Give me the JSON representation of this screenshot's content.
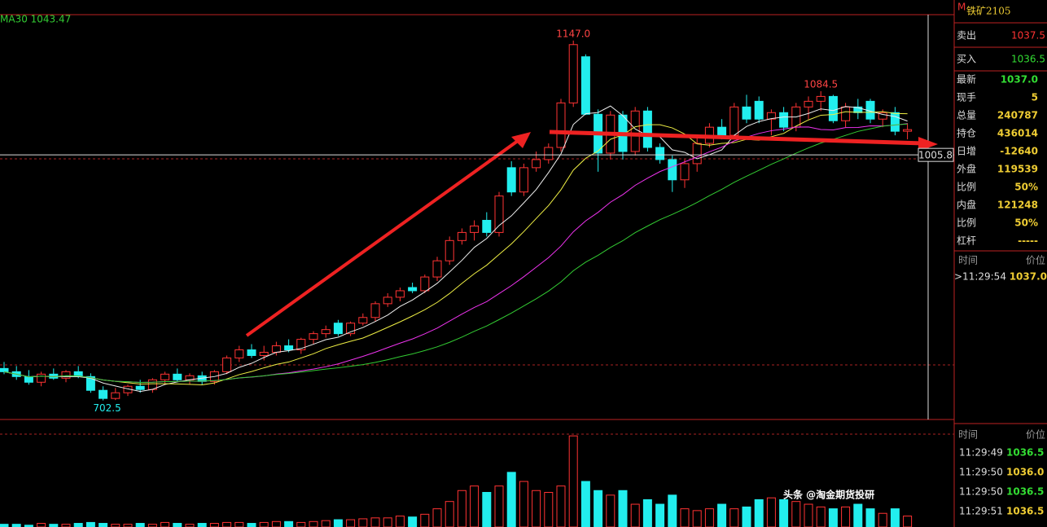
{
  "chart_data": {
    "type": "candlestick",
    "ma_label": "MA30 1043.47",
    "ylim": [
      679,
      1179
    ],
    "ohlc": [
      [
        742,
        750,
        735,
        738
      ],
      [
        738,
        745,
        728,
        732
      ],
      [
        732,
        740,
        722,
        725
      ],
      [
        725,
        738,
        720,
        735
      ],
      [
        735,
        742,
        728,
        730
      ],
      [
        730,
        740,
        725,
        738
      ],
      [
        738,
        745,
        730,
        732
      ],
      [
        732,
        736,
        712,
        715
      ],
      [
        715,
        720,
        702.5,
        705
      ],
      [
        705,
        718,
        703,
        712
      ],
      [
        712,
        722,
        708,
        720
      ],
      [
        720,
        728,
        712,
        716
      ],
      [
        716,
        730,
        712,
        728
      ],
      [
        728,
        738,
        722,
        735
      ],
      [
        735,
        742,
        725,
        728
      ],
      [
        728,
        736,
        722,
        733
      ],
      [
        733,
        738,
        722,
        726
      ],
      [
        726,
        740,
        722,
        738
      ],
      [
        738,
        758,
        735,
        755
      ],
      [
        755,
        770,
        750,
        765
      ],
      [
        765,
        772,
        755,
        758
      ],
      [
        758,
        770,
        752,
        762
      ],
      [
        762,
        775,
        758,
        770
      ],
      [
        770,
        778,
        762,
        765
      ],
      [
        765,
        780,
        760,
        778
      ],
      [
        778,
        788,
        772,
        785
      ],
      [
        785,
        795,
        780,
        790
      ],
      [
        798,
        802,
        782,
        785
      ],
      [
        785,
        800,
        782,
        798
      ],
      [
        798,
        810,
        795,
        805
      ],
      [
        805,
        825,
        800,
        822
      ],
      [
        822,
        835,
        818,
        830
      ],
      [
        830,
        842,
        825,
        838
      ],
      [
        842,
        848,
        835,
        838
      ],
      [
        838,
        858,
        835,
        855
      ],
      [
        855,
        880,
        850,
        875
      ],
      [
        875,
        905,
        870,
        900
      ],
      [
        900,
        915,
        895,
        910
      ],
      [
        910,
        925,
        900,
        918
      ],
      [
        925,
        935,
        905,
        910
      ],
      [
        910,
        960,
        905,
        955
      ],
      [
        990,
        998,
        955,
        960
      ],
      [
        960,
        995,
        955,
        990
      ],
      [
        990,
        1010,
        985,
        1000
      ],
      [
        1000,
        1020,
        995,
        1015
      ],
      [
        1015,
        1075,
        1010,
        1070
      ],
      [
        1070,
        1147,
        1065,
        1142
      ],
      [
        1127,
        1130,
        1055,
        1056
      ],
      [
        1056,
        1062,
        985,
        1008
      ],
      [
        1008,
        1060,
        1000,
        1055
      ],
      [
        1055,
        1060,
        1000,
        1010
      ],
      [
        1010,
        1065,
        1005,
        1060
      ],
      [
        1060,
        1065,
        1010,
        1015
      ],
      [
        1015,
        1020,
        995,
        1000
      ],
      [
        1000,
        1005,
        960,
        975
      ],
      [
        975,
        1000,
        965,
        995
      ],
      [
        995,
        1030,
        985,
        1020
      ],
      [
        1020,
        1045,
        1015,
        1040
      ],
      [
        1040,
        1050,
        1025,
        1030
      ],
      [
        1030,
        1070,
        1025,
        1065
      ],
      [
        1065,
        1080,
        1045,
        1050
      ],
      [
        1072,
        1078,
        1045,
        1050
      ],
      [
        1050,
        1062,
        1030,
        1058
      ],
      [
        1058,
        1065,
        1035,
        1040
      ],
      [
        1040,
        1070,
        1035,
        1065
      ],
      [
        1065,
        1078,
        1050,
        1072
      ],
      [
        1072,
        1084.5,
        1060,
        1078
      ],
      [
        1078,
        1080,
        1045,
        1048
      ],
      [
        1048,
        1070,
        1040,
        1065
      ],
      [
        1065,
        1075,
        1050,
        1058
      ],
      [
        1072,
        1075,
        1045,
        1050
      ],
      [
        1050,
        1062,
        1040,
        1058
      ],
      [
        1058,
        1065,
        1030,
        1035
      ],
      [
        1035,
        1045,
        1025,
        1037
      ]
    ],
    "volume": [
      3,
      3,
      2,
      4,
      3,
      3,
      4,
      5,
      4,
      3,
      3,
      4,
      3,
      5,
      4,
      3,
      4,
      4,
      5,
      5,
      4,
      5,
      6,
      6,
      5,
      6,
      7,
      8,
      8,
      9,
      10,
      10,
      12,
      11,
      14,
      20,
      28,
      40,
      45,
      38,
      45,
      60,
      50,
      40,
      38,
      45,
      100,
      50,
      40,
      35,
      40,
      25,
      30,
      25,
      35,
      20,
      18,
      20,
      25,
      20,
      22,
      30,
      32,
      30,
      28,
      25,
      22,
      20,
      22,
      25,
      20,
      15,
      20,
      12
    ],
    "volume_ylim": [
      0,
      118
    ],
    "annotations": [
      {
        "text": "1147.0",
        "value": 1147
      },
      {
        "text": "1084.5",
        "value": 1084.5
      },
      {
        "text": "702.5",
        "value": 702.5
      }
    ],
    "crosshair": {
      "value": 1005.8,
      "label": "1005.8"
    }
  },
  "panel": {
    "contract": "铁矿2105",
    "flag": "M",
    "ask": {
      "label": "卖出",
      "value": "1037.5"
    },
    "bid": {
      "label": "买入",
      "value": "1036.5"
    },
    "rows": [
      [
        "最新",
        "1037.0"
      ],
      [
        "现手",
        "5"
      ],
      [
        "总量",
        "240787"
      ],
      [
        "持仓",
        "436014"
      ],
      [
        "日增",
        "-12640"
      ],
      [
        "外盘",
        "119539"
      ],
      [
        "比例",
        "50%"
      ],
      [
        "内盘",
        "121248"
      ],
      [
        "比例",
        "50%"
      ],
      [
        "杠杆",
        "-----"
      ]
    ],
    "ticks_header": [
      "时间",
      "价位"
    ],
    "ticks_top": [
      [
        ">11:29:54",
        "1037.0"
      ]
    ],
    "ticks_bottom": [
      [
        "11:29:49",
        "1036.5"
      ],
      [
        "11:29:50",
        "1036.0"
      ],
      [
        "11:29:50",
        "1036.5"
      ],
      [
        "11:29:51",
        "1036.5"
      ]
    ]
  },
  "watermark": "头条 @淘金期货投研"
}
